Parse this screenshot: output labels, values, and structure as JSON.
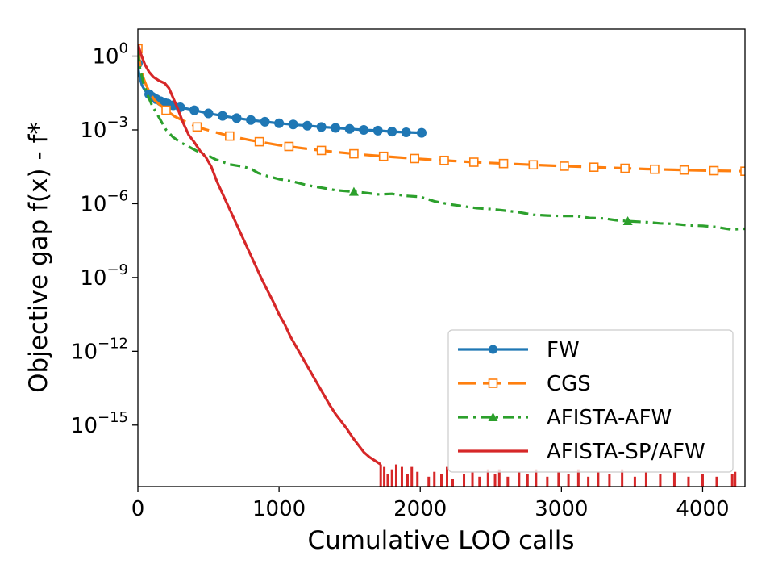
{
  "chart_data": {
    "type": "line",
    "title": "",
    "xlabel": "Cumulative LOO calls",
    "ylabel": "Objective gap f(x) - f*",
    "xscale": "linear",
    "yscale": "log",
    "xlim": [
      0,
      4300
    ],
    "ylim_log10": [
      -17.5,
      1.1
    ],
    "grid": false,
    "legend_position": "lower right",
    "x_ticks": [
      {
        "value": 0,
        "label": "0"
      },
      {
        "value": 1000,
        "label": "1000"
      },
      {
        "value": 2000,
        "label": "2000"
      },
      {
        "value": 3000,
        "label": "3000"
      },
      {
        "value": 4000,
        "label": "4000"
      }
    ],
    "y_ticks": [
      {
        "exp": 0,
        "base": "10",
        "sup": "0"
      },
      {
        "exp": -3,
        "base": "10",
        "sup": "−3"
      },
      {
        "exp": -6,
        "base": "10",
        "sup": "−6"
      },
      {
        "exp": -9,
        "base": "10",
        "sup": "−9"
      },
      {
        "exp": -12,
        "base": "10",
        "sup": "−12"
      },
      {
        "exp": -15,
        "base": "10",
        "sup": "−15"
      }
    ],
    "series": [
      {
        "name": "FW",
        "color": "#1f77b4",
        "linestyle": "solid",
        "marker": "circle-filled",
        "x": [
          0,
          5,
          15,
          30,
          50,
          80,
          100,
          130,
          160,
          190,
          210,
          250,
          300,
          400,
          500,
          600,
          700,
          800,
          900,
          1000,
          1100,
          1200,
          1300,
          1400,
          1500,
          1600,
          1700,
          1800,
          1900,
          2010
        ],
        "log10_y": [
          -0.3,
          -0.6,
          -0.9,
          -1.2,
          -1.4,
          -1.55,
          -1.65,
          -1.75,
          -1.83,
          -1.9,
          -1.93,
          -2.0,
          -2.08,
          -2.2,
          -2.33,
          -2.43,
          -2.52,
          -2.6,
          -2.67,
          -2.73,
          -2.78,
          -2.83,
          -2.88,
          -2.92,
          -2.96,
          -3.0,
          -3.03,
          -3.07,
          -3.1,
          -3.12
        ]
      },
      {
        "name": "CGS",
        "color": "#ff7f0e",
        "linestyle": "dashed",
        "marker": "square-open",
        "x": [
          0,
          10,
          20,
          40,
          60,
          90,
          120,
          160,
          200,
          260,
          320,
          420,
          520,
          650,
          800,
          1000,
          1200,
          1400,
          1600,
          1800,
          2000,
          2200,
          2400,
          2600,
          2800,
          3000,
          3200,
          3400,
          3600,
          3800,
          4000,
          4300
        ],
        "log10_y": [
          0.3,
          -0.1,
          -0.5,
          -0.9,
          -1.2,
          -1.55,
          -1.8,
          -2.0,
          -2.2,
          -2.45,
          -2.62,
          -2.88,
          -3.05,
          -3.25,
          -3.42,
          -3.62,
          -3.77,
          -3.9,
          -4.01,
          -4.1,
          -4.18,
          -4.25,
          -4.32,
          -4.37,
          -4.42,
          -4.47,
          -4.51,
          -4.55,
          -4.59,
          -4.62,
          -4.65,
          -4.68
        ],
        "marker_x": [
          0,
          200,
          420,
          650,
          860,
          1070,
          1300,
          1530,
          1740,
          1960,
          2170,
          2380,
          2590,
          2800,
          3020,
          3230,
          3450,
          3660,
          3870,
          4080,
          4300
        ]
      },
      {
        "name": "AFISTA-AFW",
        "color": "#2ca02c",
        "linestyle": "dashdot",
        "marker": "triangle-filled",
        "x": [
          0,
          15,
          40,
          70,
          100,
          150,
          200,
          250,
          300,
          350,
          400,
          450,
          500,
          550,
          600,
          650,
          700,
          750,
          800,
          850,
          900,
          1000,
          1100,
          1200,
          1300,
          1400,
          1500,
          1600,
          1700,
          1800,
          1900,
          2000,
          2100,
          2200,
          2300,
          2400,
          2500,
          2600,
          2700,
          2800,
          2900,
          3000,
          3100,
          3200,
          3300,
          3400,
          3500,
          3600,
          3700,
          3800,
          3900,
          4000,
          4100,
          4200,
          4300
        ],
        "log10_y": [
          0.2,
          -0.5,
          -1.1,
          -1.6,
          -2.0,
          -2.5,
          -3.0,
          -3.3,
          -3.5,
          -3.65,
          -3.8,
          -3.95,
          -4.05,
          -4.2,
          -4.3,
          -4.4,
          -4.45,
          -4.5,
          -4.58,
          -4.75,
          -4.85,
          -5.0,
          -5.1,
          -5.25,
          -5.35,
          -5.45,
          -5.5,
          -5.55,
          -5.62,
          -5.6,
          -5.68,
          -5.72,
          -5.9,
          -6.02,
          -6.1,
          -6.18,
          -6.22,
          -6.28,
          -6.35,
          -6.45,
          -6.48,
          -6.5,
          -6.5,
          -6.58,
          -6.6,
          -6.68,
          -6.72,
          -6.75,
          -6.8,
          -6.82,
          -6.88,
          -6.9,
          -6.95,
          -7.05,
          -7.02
        ],
        "marker_x": [
          0,
          1530,
          3470
        ]
      },
      {
        "name": "AFISTA-SP/AFW",
        "color": "#d62728",
        "linestyle": "solid",
        "marker": "none",
        "x": [
          0,
          20,
          50,
          80,
          110,
          150,
          190,
          220,
          250,
          280,
          320,
          360,
          400,
          440,
          480,
          520,
          560,
          600,
          640,
          680,
          720,
          760,
          800,
          840,
          880,
          920,
          960,
          1000,
          1040,
          1080,
          1120,
          1160,
          1200,
          1240,
          1280,
          1320,
          1360,
          1400,
          1440,
          1480,
          1520,
          1560,
          1600,
          1640,
          1680,
          1720
        ],
        "log10_y": [
          0.5,
          0.1,
          -0.35,
          -0.65,
          -0.85,
          -1.0,
          -1.1,
          -1.3,
          -1.7,
          -2.1,
          -2.7,
          -3.2,
          -3.5,
          -3.85,
          -4.1,
          -4.5,
          -5.1,
          -5.6,
          -6.1,
          -6.6,
          -7.1,
          -7.6,
          -8.1,
          -8.6,
          -9.1,
          -9.55,
          -10.0,
          -10.5,
          -10.9,
          -11.4,
          -11.8,
          -12.2,
          -12.6,
          -13.0,
          -13.4,
          -13.8,
          -14.2,
          -14.55,
          -14.85,
          -15.15,
          -15.5,
          -15.8,
          -16.1,
          -16.3,
          -16.45,
          -16.6
        ],
        "spikes": [
          {
            "x": 1720,
            "log10_y": -16.6
          },
          {
            "x": 1745,
            "log10_y": -16.7
          },
          {
            "x": 1770,
            "log10_y": -17.0
          },
          {
            "x": 1800,
            "log10_y": -16.8
          },
          {
            "x": 1830,
            "log10_y": -16.6
          },
          {
            "x": 1870,
            "log10_y": -16.7
          },
          {
            "x": 1910,
            "log10_y": -17.0
          },
          {
            "x": 1940,
            "log10_y": -16.7
          },
          {
            "x": 1980,
            "log10_y": -16.9
          },
          {
            "x": 2060,
            "log10_y": -17.1
          },
          {
            "x": 2100,
            "log10_y": -16.9
          },
          {
            "x": 2150,
            "log10_y": -17.0
          },
          {
            "x": 2190,
            "log10_y": -16.7
          },
          {
            "x": 2230,
            "log10_y": -17.2
          },
          {
            "x": 2310,
            "log10_y": -17.0
          },
          {
            "x": 2370,
            "log10_y": -16.9
          },
          {
            "x": 2420,
            "log10_y": -17.1
          },
          {
            "x": 2480,
            "log10_y": -16.8
          },
          {
            "x": 2530,
            "log10_y": -17.0
          },
          {
            "x": 2560,
            "log10_y": -16.8
          },
          {
            "x": 2620,
            "log10_y": -17.1
          },
          {
            "x": 2700,
            "log10_y": -16.9
          },
          {
            "x": 2760,
            "log10_y": -17.0
          },
          {
            "x": 2820,
            "log10_y": -16.8
          },
          {
            "x": 2900,
            "log10_y": -17.1
          },
          {
            "x": 2980,
            "log10_y": -16.9
          },
          {
            "x": 3050,
            "log10_y": -17.0
          },
          {
            "x": 3120,
            "log10_y": -16.8
          },
          {
            "x": 3190,
            "log10_y": -17.1
          },
          {
            "x": 3260,
            "log10_y": -16.9
          },
          {
            "x": 3340,
            "log10_y": -17.0
          },
          {
            "x": 3430,
            "log10_y": -16.8
          },
          {
            "x": 3520,
            "log10_y": -17.1
          },
          {
            "x": 3600,
            "log10_y": -16.9
          },
          {
            "x": 3700,
            "log10_y": -17.0
          },
          {
            "x": 3800,
            "log10_y": -16.9
          },
          {
            "x": 3900,
            "log10_y": -17.1
          },
          {
            "x": 4000,
            "log10_y": -17.0
          },
          {
            "x": 4100,
            "log10_y": -17.1
          },
          {
            "x": 4210,
            "log10_y": -17.0
          },
          {
            "x": 4230,
            "log10_y": -16.9
          }
        ]
      }
    ]
  }
}
